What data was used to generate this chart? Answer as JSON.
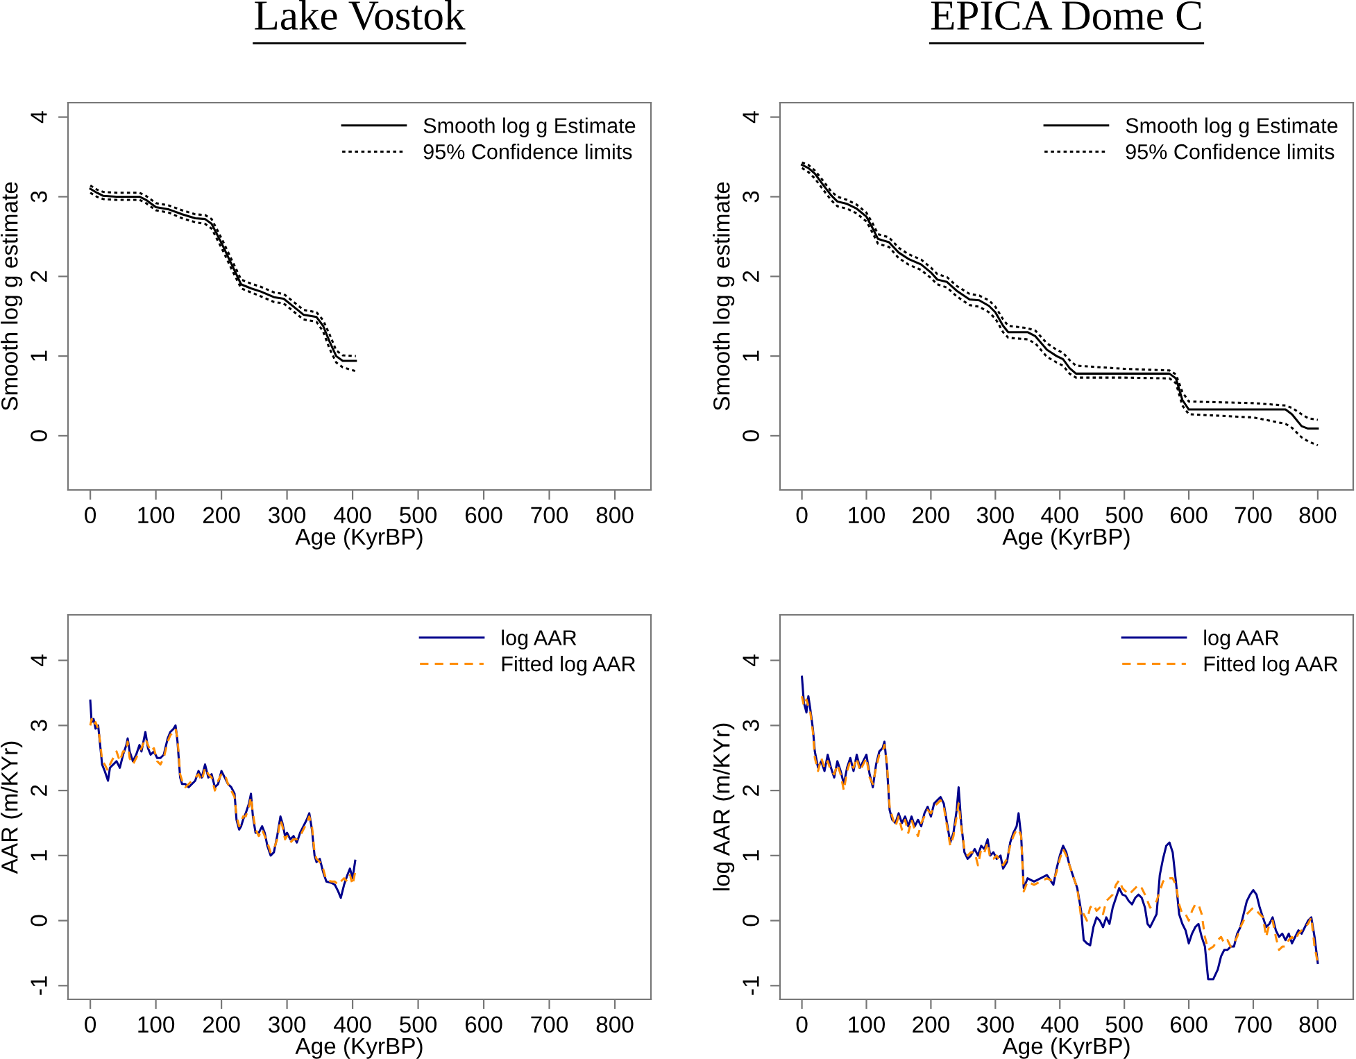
{
  "chart_data": [
    {
      "type": "line",
      "title": "Lake Vostok",
      "xlabel": "Age (KyrBP)",
      "ylabel": "Smooth log g estimate",
      "xlim": [
        -34,
        855
      ],
      "ylim": [
        -0.68,
        4.18
      ],
      "xticks": [
        0,
        100,
        200,
        300,
        400,
        500,
        600,
        700,
        800
      ],
      "yticks": [
        0,
        1,
        2,
        3,
        4
      ],
      "grid": false,
      "legend": "top right",
      "series": [
        {
          "name": "Smooth log g Estimate",
          "color": "#000000",
          "line_style": "solid",
          "x": [
            0,
            10,
            20,
            40,
            60,
            75,
            85,
            100,
            120,
            140,
            160,
            175,
            185,
            200,
            215,
            230,
            245,
            260,
            280,
            295,
            310,
            325,
            345,
            355,
            365,
            375,
            385,
            405
          ],
          "values": [
            3.1,
            3.05,
            3.01,
            3.0,
            3.0,
            3.0,
            2.96,
            2.87,
            2.84,
            2.78,
            2.73,
            2.72,
            2.66,
            2.42,
            2.16,
            1.9,
            1.85,
            1.81,
            1.74,
            1.72,
            1.62,
            1.52,
            1.49,
            1.38,
            1.18,
            1.0,
            0.94,
            0.94
          ]
        },
        {
          "name": "95% Confidence limits",
          "color": "#000000",
          "line_style": "dotted",
          "x": [
            0,
            10,
            20,
            40,
            60,
            75,
            85,
            100,
            120,
            140,
            160,
            175,
            185,
            200,
            215,
            230,
            245,
            260,
            280,
            295,
            310,
            325,
            345,
            355,
            365,
            375,
            385,
            405
          ],
          "values": [
            3.14,
            3.09,
            3.06,
            3.05,
            3.05,
            3.05,
            3.01,
            2.92,
            2.89,
            2.83,
            2.78,
            2.77,
            2.72,
            2.48,
            2.22,
            1.96,
            1.91,
            1.87,
            1.8,
            1.78,
            1.68,
            1.58,
            1.55,
            1.45,
            1.27,
            1.07,
            1.01,
            1.0
          ]
        },
        {
          "color": "#000000",
          "line_style": "dotted",
          "x": [
            0,
            10,
            20,
            40,
            60,
            75,
            85,
            100,
            120,
            140,
            160,
            175,
            185,
            200,
            215,
            230,
            245,
            260,
            280,
            295,
            310,
            325,
            345,
            355,
            365,
            375,
            385,
            405
          ],
          "values": [
            3.05,
            3.0,
            2.97,
            2.96,
            2.96,
            2.96,
            2.92,
            2.83,
            2.8,
            2.73,
            2.68,
            2.66,
            2.6,
            2.36,
            2.1,
            1.85,
            1.8,
            1.75,
            1.68,
            1.66,
            1.56,
            1.46,
            1.43,
            1.31,
            1.09,
            0.92,
            0.86,
            0.81
          ]
        }
      ]
    },
    {
      "type": "line",
      "title": "EPICA Dome C",
      "xlabel": "Age (KyrBP)",
      "ylabel": "Smooth log g estimate",
      "xlim": [
        -34,
        855
      ],
      "ylim": [
        -0.68,
        4.18
      ],
      "xticks": [
        0,
        100,
        200,
        300,
        400,
        500,
        600,
        700,
        800
      ],
      "yticks": [
        0,
        1,
        2,
        3,
        4
      ],
      "grid": false,
      "legend": "top right",
      "series": [
        {
          "name": "Smooth log g Estimate",
          "color": "#000000",
          "line_style": "solid",
          "x": [
            0,
            10,
            20,
            30,
            45,
            55,
            70,
            85,
            100,
            110,
            118,
            135,
            150,
            165,
            185,
            200,
            210,
            225,
            240,
            260,
            275,
            290,
            300,
            312,
            320,
            350,
            362,
            380,
            395,
            405,
            415,
            425,
            570,
            580,
            590,
            600,
            750,
            760,
            775,
            785,
            800
          ],
          "values": [
            3.4,
            3.36,
            3.29,
            3.18,
            3.02,
            2.94,
            2.91,
            2.85,
            2.75,
            2.6,
            2.47,
            2.43,
            2.3,
            2.22,
            2.15,
            2.05,
            1.96,
            1.93,
            1.82,
            1.71,
            1.7,
            1.63,
            1.55,
            1.38,
            1.3,
            1.3,
            1.25,
            1.08,
            1.0,
            0.96,
            0.85,
            0.78,
            0.78,
            0.72,
            0.45,
            0.33,
            0.33,
            0.27,
            0.12,
            0.09,
            0.09
          ]
        },
        {
          "name": "95% Confidence limits",
          "color": "#000000",
          "line_style": "dotted",
          "x": [
            0,
            10,
            20,
            30,
            45,
            55,
            70,
            85,
            100,
            110,
            118,
            135,
            150,
            165,
            185,
            200,
            210,
            225,
            240,
            260,
            275,
            290,
            300,
            312,
            320,
            350,
            362,
            380,
            395,
            405,
            415,
            425,
            500,
            570,
            580,
            590,
            600,
            700,
            750,
            760,
            775,
            785,
            800
          ],
          "values": [
            3.43,
            3.4,
            3.33,
            3.23,
            3.07,
            3.0,
            2.96,
            2.9,
            2.8,
            2.66,
            2.53,
            2.49,
            2.36,
            2.28,
            2.21,
            2.11,
            2.03,
            1.99,
            1.88,
            1.78,
            1.76,
            1.7,
            1.62,
            1.46,
            1.38,
            1.35,
            1.32,
            1.16,
            1.08,
            1.04,
            0.95,
            0.88,
            0.84,
            0.82,
            0.77,
            0.55,
            0.43,
            0.41,
            0.38,
            0.35,
            0.27,
            0.22,
            0.2
          ]
        },
        {
          "color": "#000000",
          "line_style": "dotted",
          "x": [
            0,
            10,
            20,
            30,
            45,
            55,
            70,
            85,
            100,
            110,
            118,
            135,
            150,
            165,
            185,
            200,
            210,
            225,
            240,
            260,
            275,
            290,
            300,
            312,
            320,
            350,
            362,
            380,
            395,
            405,
            415,
            425,
            500,
            570,
            580,
            590,
            600,
            700,
            750,
            760,
            775,
            785,
            800
          ],
          "values": [
            3.36,
            3.31,
            3.23,
            3.12,
            2.96,
            2.88,
            2.85,
            2.79,
            2.69,
            2.54,
            2.41,
            2.37,
            2.23,
            2.15,
            2.08,
            1.98,
            1.9,
            1.86,
            1.75,
            1.64,
            1.62,
            1.55,
            1.47,
            1.3,
            1.23,
            1.21,
            1.16,
            0.99,
            0.92,
            0.88,
            0.78,
            0.73,
            0.73,
            0.72,
            0.66,
            0.38,
            0.27,
            0.23,
            0.15,
            0.1,
            -0.02,
            -0.07,
            -0.12
          ]
        }
      ]
    },
    {
      "type": "line",
      "xlabel": "Age (KyrBP)",
      "ylabel": "AAR (m/KYr)",
      "xlim": [
        -34,
        855
      ],
      "ylim": [
        -1.21,
        4.7
      ],
      "xticks": [
        0,
        100,
        200,
        300,
        400,
        500,
        600,
        700,
        800
      ],
      "yticks": [
        -1,
        0,
        1,
        2,
        3,
        4
      ],
      "grid": false,
      "legend": "top right",
      "series": [
        {
          "name": "log AAR",
          "color": "#00008b",
          "line_style": "solid",
          "x": [
            0,
            2,
            5,
            8,
            12,
            15,
            18,
            22,
            27,
            30,
            35,
            40,
            45,
            50,
            55,
            57,
            60,
            65,
            70,
            75,
            78,
            82,
            84,
            88,
            92,
            97,
            102,
            107,
            112,
            118,
            122,
            127,
            130,
            133,
            137,
            140,
            145,
            150,
            155,
            160,
            165,
            170,
            175,
            180,
            185,
            190,
            195,
            200,
            205,
            210,
            215,
            220,
            223,
            227,
            230,
            233,
            237,
            242,
            245,
            248,
            252,
            257,
            262,
            266,
            270,
            275,
            280,
            285,
            290,
            293,
            297,
            300,
            305,
            310,
            315,
            320,
            325,
            330,
            334,
            338,
            342,
            345,
            350,
            355,
            360,
            368,
            373,
            378,
            382,
            387,
            392,
            396,
            400,
            404
          ],
          "values": [
            3.38,
            3.05,
            3.1,
            2.95,
            3.0,
            2.7,
            2.4,
            2.3,
            2.15,
            2.35,
            2.4,
            2.45,
            2.35,
            2.55,
            2.7,
            2.8,
            2.6,
            2.45,
            2.55,
            2.7,
            2.6,
            2.8,
            2.9,
            2.65,
            2.55,
            2.6,
            2.5,
            2.5,
            2.55,
            2.8,
            2.9,
            2.95,
            3.0,
            2.75,
            2.2,
            2.1,
            2.1,
            2.05,
            2.1,
            2.15,
            2.3,
            2.2,
            2.4,
            2.2,
            2.25,
            2.05,
            2.1,
            2.3,
            2.2,
            2.1,
            2.05,
            1.95,
            1.55,
            1.4,
            1.45,
            1.55,
            1.65,
            1.8,
            1.95,
            1.6,
            1.35,
            1.35,
            1.45,
            1.35,
            1.15,
            1.0,
            1.05,
            1.3,
            1.6,
            1.5,
            1.3,
            1.35,
            1.25,
            1.3,
            1.2,
            1.35,
            1.45,
            1.55,
            1.65,
            1.4,
            1.0,
            0.9,
            0.95,
            0.75,
            0.6,
            0.58,
            0.55,
            0.45,
            0.35,
            0.55,
            0.7,
            0.8,
            0.65,
            0.92
          ]
        },
        {
          "name": "Fitted log AAR",
          "color": "#ff8c00",
          "line_style": "dashed",
          "x": [
            0,
            2,
            5,
            8,
            12,
            15,
            18,
            22,
            27,
            30,
            35,
            40,
            45,
            50,
            55,
            57,
            60,
            65,
            70,
            75,
            78,
            82,
            84,
            88,
            92,
            97,
            102,
            107,
            112,
            118,
            122,
            127,
            130,
            133,
            137,
            140,
            145,
            150,
            155,
            160,
            165,
            170,
            175,
            180,
            185,
            190,
            195,
            200,
            205,
            210,
            215,
            220,
            223,
            227,
            230,
            233,
            237,
            242,
            245,
            248,
            252,
            257,
            262,
            266,
            270,
            275,
            280,
            285,
            290,
            293,
            297,
            300,
            305,
            310,
            315,
            320,
            325,
            330,
            334,
            338,
            342,
            345,
            350,
            355,
            360,
            368,
            373,
            378,
            382,
            387,
            392,
            396,
            400,
            404
          ],
          "values": [
            3.0,
            3.1,
            3.0,
            3.05,
            2.95,
            2.75,
            2.45,
            2.4,
            2.3,
            2.4,
            2.5,
            2.6,
            2.45,
            2.6,
            2.6,
            2.75,
            2.5,
            2.4,
            2.5,
            2.6,
            2.65,
            2.75,
            2.8,
            2.7,
            2.6,
            2.65,
            2.45,
            2.4,
            2.5,
            2.75,
            2.85,
            2.9,
            2.95,
            2.8,
            2.25,
            2.15,
            2.05,
            2.1,
            2.15,
            2.2,
            2.25,
            2.15,
            2.35,
            2.25,
            2.2,
            2.0,
            2.15,
            2.25,
            2.25,
            2.1,
            2.0,
            1.9,
            1.6,
            1.45,
            1.5,
            1.6,
            1.6,
            1.75,
            1.9,
            1.65,
            1.4,
            1.3,
            1.4,
            1.3,
            1.2,
            1.05,
            1.1,
            1.25,
            1.55,
            1.45,
            1.25,
            1.3,
            1.2,
            1.25,
            1.25,
            1.3,
            1.4,
            1.5,
            1.6,
            1.45,
            1.05,
            0.95,
            0.9,
            0.8,
            0.62,
            0.6,
            0.6,
            0.55,
            0.6,
            0.65,
            0.6,
            0.7,
            0.55,
            0.75
          ]
        }
      ]
    },
    {
      "type": "line",
      "xlabel": "Age (KyrBP)",
      "ylabel": "log AAR (m/KYr)",
      "xlim": [
        -34,
        855
      ],
      "ylim": [
        -1.21,
        4.7
      ],
      "xticks": [
        0,
        100,
        200,
        300,
        400,
        500,
        600,
        700,
        800
      ],
      "yticks": [
        -1,
        0,
        1,
        2,
        3,
        4
      ],
      "grid": false,
      "legend": "top right",
      "series": [
        {
          "name": "log AAR",
          "color": "#00008b",
          "line_style": "solid",
          "x": [
            0,
            3,
            7,
            10,
            13,
            17,
            20,
            25,
            30,
            35,
            40,
            45,
            50,
            55,
            60,
            65,
            70,
            75,
            80,
            85,
            90,
            95,
            100,
            105,
            110,
            115,
            120,
            125,
            128,
            132,
            136,
            140,
            145,
            150,
            155,
            160,
            165,
            170,
            175,
            180,
            185,
            190,
            195,
            200,
            205,
            210,
            215,
            220,
            225,
            230,
            235,
            240,
            243,
            247,
            252,
            257,
            262,
            268,
            273,
            278,
            283,
            288,
            292,
            297,
            302,
            308,
            312,
            318,
            323,
            328,
            333,
            336,
            340,
            344,
            350,
            360,
            370,
            380,
            390,
            395,
            400,
            405,
            410,
            415,
            420,
            427,
            433,
            437,
            442,
            447,
            452,
            457,
            462,
            467,
            472,
            477,
            482,
            487,
            492,
            497,
            502,
            507,
            512,
            517,
            522,
            527,
            532,
            536,
            540,
            545,
            550,
            555,
            560,
            565,
            570,
            575,
            580,
            585,
            590,
            595,
            600,
            605,
            610,
            615,
            620,
            625,
            630,
            638,
            645,
            650,
            655,
            660,
            665,
            670,
            675,
            680,
            685,
            690,
            695,
            700,
            705,
            710,
            715,
            720,
            725,
            730,
            735,
            740,
            745,
            750,
            755,
            760,
            765,
            770,
            775,
            780,
            785,
            790,
            795,
            800
          ],
          "values": [
            3.75,
            3.35,
            3.2,
            3.45,
            3.25,
            2.95,
            2.6,
            2.35,
            2.45,
            2.3,
            2.55,
            2.35,
            2.2,
            2.45,
            2.3,
            2.1,
            2.35,
            2.5,
            2.3,
            2.55,
            2.35,
            2.45,
            2.55,
            2.25,
            2.05,
            2.4,
            2.6,
            2.65,
            2.75,
            2.35,
            1.7,
            1.55,
            1.5,
            1.65,
            1.5,
            1.6,
            1.45,
            1.6,
            1.45,
            1.55,
            1.45,
            1.65,
            1.75,
            1.6,
            1.8,
            1.85,
            1.9,
            1.8,
            1.5,
            1.2,
            1.35,
            1.7,
            2.05,
            1.5,
            1.05,
            0.95,
            1.0,
            1.1,
            1.0,
            1.15,
            1.1,
            1.25,
            1.0,
            1.05,
            0.95,
            1.0,
            0.8,
            0.9,
            1.2,
            1.35,
            1.45,
            1.65,
            1.3,
            0.5,
            0.65,
            0.6,
            0.65,
            0.7,
            0.55,
            0.8,
            1.0,
            1.15,
            1.05,
            0.85,
            0.7,
            0.5,
            0.15,
            -0.3,
            -0.35,
            -0.38,
            -0.1,
            0.05,
            0.0,
            -0.1,
            0.05,
            -0.05,
            0.2,
            0.35,
            0.5,
            0.4,
            0.38,
            0.3,
            0.25,
            0.35,
            0.4,
            0.35,
            0.2,
            -0.05,
            -0.1,
            0.0,
            0.1,
            0.7,
            0.95,
            1.15,
            1.2,
            1.05,
            0.6,
            0.1,
            -0.05,
            -0.15,
            -0.35,
            -0.2,
            -0.1,
            -0.05,
            -0.25,
            -0.4,
            -0.9,
            -0.9,
            -0.75,
            -0.55,
            -0.45,
            -0.45,
            -0.4,
            -0.4,
            -0.2,
            -0.1,
            0.1,
            0.3,
            0.4,
            0.47,
            0.4,
            0.2,
            0.05,
            -0.1,
            -0.05,
            0.05,
            -0.15,
            -0.25,
            -0.2,
            -0.3,
            -0.2,
            -0.35,
            -0.25,
            -0.15,
            -0.2,
            -0.1,
            0.0,
            0.05,
            -0.25,
            -0.65
          ]
        },
        {
          "name": "Fitted log AAR",
          "color": "#ff8c00",
          "line_style": "dashed",
          "x": [
            0,
            3,
            7,
            10,
            13,
            17,
            20,
            25,
            30,
            35,
            40,
            45,
            50,
            55,
            60,
            65,
            70,
            75,
            80,
            85,
            90,
            95,
            100,
            105,
            110,
            115,
            120,
            125,
            128,
            132,
            136,
            140,
            145,
            150,
            155,
            160,
            165,
            170,
            175,
            180,
            185,
            190,
            195,
            200,
            205,
            210,
            215,
            220,
            225,
            230,
            235,
            240,
            243,
            247,
            252,
            257,
            262,
            268,
            273,
            278,
            283,
            288,
            292,
            297,
            302,
            308,
            312,
            318,
            323,
            328,
            333,
            336,
            340,
            344,
            350,
            360,
            370,
            380,
            390,
            395,
            400,
            405,
            410,
            415,
            420,
            427,
            433,
            437,
            442,
            447,
            452,
            457,
            462,
            467,
            472,
            477,
            482,
            487,
            492,
            497,
            502,
            507,
            512,
            517,
            522,
            527,
            532,
            536,
            540,
            545,
            550,
            555,
            560,
            565,
            570,
            575,
            580,
            585,
            590,
            595,
            600,
            605,
            610,
            615,
            620,
            625,
            630,
            638,
            645,
            650,
            655,
            660,
            665,
            670,
            675,
            680,
            685,
            690,
            695,
            700,
            705,
            710,
            715,
            720,
            725,
            730,
            735,
            740,
            745,
            750,
            755,
            760,
            765,
            770,
            775,
            780,
            785,
            790,
            795,
            800
          ],
          "values": [
            3.45,
            3.3,
            3.4,
            3.3,
            3.2,
            2.9,
            2.5,
            2.3,
            2.5,
            2.35,
            2.45,
            2.3,
            2.25,
            2.4,
            2.25,
            2.0,
            2.3,
            2.45,
            2.35,
            2.5,
            2.3,
            2.4,
            2.5,
            2.2,
            2.1,
            2.35,
            2.55,
            2.6,
            2.7,
            2.4,
            1.75,
            1.6,
            1.45,
            1.6,
            1.4,
            1.55,
            1.35,
            1.55,
            1.4,
            1.3,
            1.5,
            1.6,
            1.7,
            1.65,
            1.75,
            1.8,
            1.85,
            1.75,
            1.45,
            1.15,
            1.3,
            1.6,
            1.8,
            1.45,
            1.1,
            1.0,
            1.05,
            1.05,
            0.85,
            1.1,
            1.05,
            1.2,
            0.95,
            0.95,
            1.0,
            0.9,
            0.85,
            0.95,
            1.15,
            1.3,
            1.4,
            1.4,
            1.3,
            0.45,
            0.6,
            0.55,
            0.6,
            0.65,
            0.6,
            0.75,
            0.95,
            1.1,
            1.0,
            0.85,
            0.7,
            0.5,
            0.05,
            0.1,
            0.0,
            0.2,
            0.25,
            0.15,
            0.2,
            0.1,
            0.3,
            0.35,
            0.4,
            0.55,
            0.62,
            0.5,
            0.45,
            0.4,
            0.45,
            0.5,
            0.55,
            0.5,
            0.4,
            0.3,
            0.2,
            0.25,
            0.3,
            0.45,
            0.6,
            0.65,
            0.65,
            0.65,
            0.55,
            0.25,
            0.1,
            0.1,
            0.0,
            0.15,
            0.25,
            0.25,
            0.1,
            -0.25,
            -0.45,
            -0.4,
            -0.3,
            -0.25,
            -0.35,
            -0.3,
            -0.4,
            -0.35,
            -0.25,
            -0.1,
            0.0,
            0.1,
            0.15,
            0.2,
            0.15,
            0.1,
            0.05,
            -0.25,
            -0.05,
            0.0,
            -0.25,
            -0.45,
            -0.4,
            -0.4,
            -0.3,
            -0.25,
            -0.3,
            -0.2,
            -0.15,
            -0.1,
            -0.05,
            0.05,
            -0.4,
            -0.65
          ]
        }
      ]
    }
  ]
}
